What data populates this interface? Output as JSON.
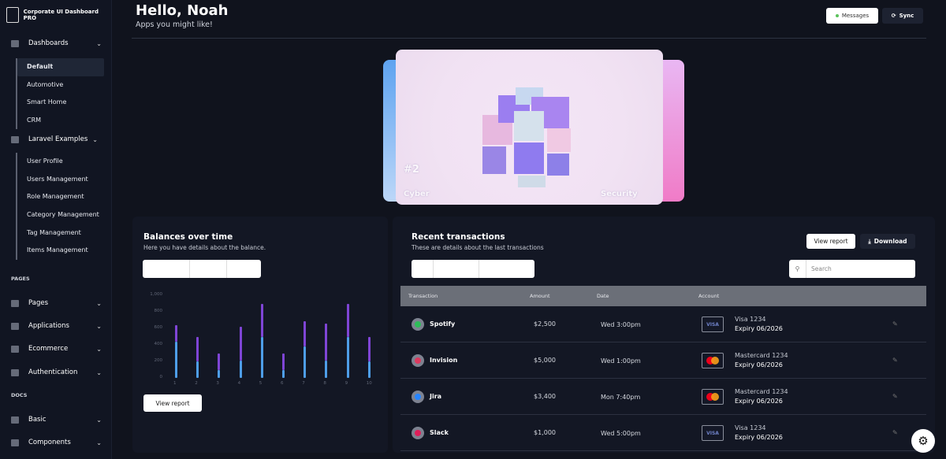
{
  "brand": "Corporate UI Dashboard PRO",
  "sidebar": {
    "dashboards": "Dashboards",
    "dashboard_items": [
      "Default",
      "Automotive",
      "Smart Home",
      "CRM"
    ],
    "laravel": "Laravel Examples",
    "laravel_items": [
      "User Profile",
      "Users Management",
      "Role Management",
      "Category Management",
      "Tag Management",
      "Items Management"
    ],
    "pages_section": "PAGES",
    "pages_groups": [
      "Pages",
      "Applications",
      "Ecommerce",
      "Authentication"
    ],
    "docs_section": "DOCS",
    "docs_groups": [
      "Basic",
      "Components"
    ]
  },
  "header": {
    "title": "Hello, Noah",
    "subtitle": "Apps you might like!",
    "messages": "Messages",
    "sync": "Sync"
  },
  "carousel": {
    "number": "#2",
    "left_caption": "Cyber",
    "right_caption": "Security"
  },
  "balances": {
    "title": "Balances over time",
    "subtitle": "Here you have details about the balance.",
    "view_report": "View report"
  },
  "chart_data": {
    "type": "bar",
    "stacked": true,
    "categories": [
      "1",
      "2",
      "3",
      "4",
      "5",
      "6",
      "7",
      "8",
      "9",
      "10"
    ],
    "yticks": [
      "0",
      "200",
      "400",
      "600",
      "800",
      "1,000"
    ],
    "ylim": [
      0,
      1000
    ],
    "series": [
      {
        "values": [
          440,
          200,
          100,
          210,
          500,
          100,
          380,
          210,
          500,
          200
        ],
        "color": "#4e9ee8"
      },
      {
        "values": [
          200,
          300,
          200,
          410,
          400,
          200,
          310,
          450,
          400,
          300
        ],
        "color": "#7f45d6"
      }
    ]
  },
  "transactions": {
    "title": "Recent transactions",
    "subtitle": "These are details about the last transactions",
    "view_report": "View report",
    "download": "Download",
    "search_placeholder": "Search",
    "columns": [
      "Transaction",
      "Amount",
      "Date",
      "Account"
    ],
    "rows": [
      {
        "name": "Spotify",
        "amount": "$2,500",
        "date": "Wed 3:00pm",
        "card": "VISA",
        "account": "Visa 1234",
        "expiry": "Expiry 06/2026",
        "color": "#2ebd59"
      },
      {
        "name": "Invision",
        "amount": "$5,000",
        "date": "Wed 1:00pm",
        "card": "MC",
        "account": "Mastercard 1234",
        "expiry": "Expiry 06/2026",
        "color": "#dc395f"
      },
      {
        "name": "Jira",
        "amount": "$3,400",
        "date": "Mon 7:40pm",
        "card": "MC",
        "account": "Mastercard 1234",
        "expiry": "Expiry 06/2026",
        "color": "#2684ff"
      },
      {
        "name": "Slack",
        "amount": "$1,000",
        "date": "Wed 5:00pm",
        "card": "VISA",
        "account": "Visa 1234",
        "expiry": "Expiry 06/2026",
        "color": "#e01e5a"
      }
    ]
  }
}
